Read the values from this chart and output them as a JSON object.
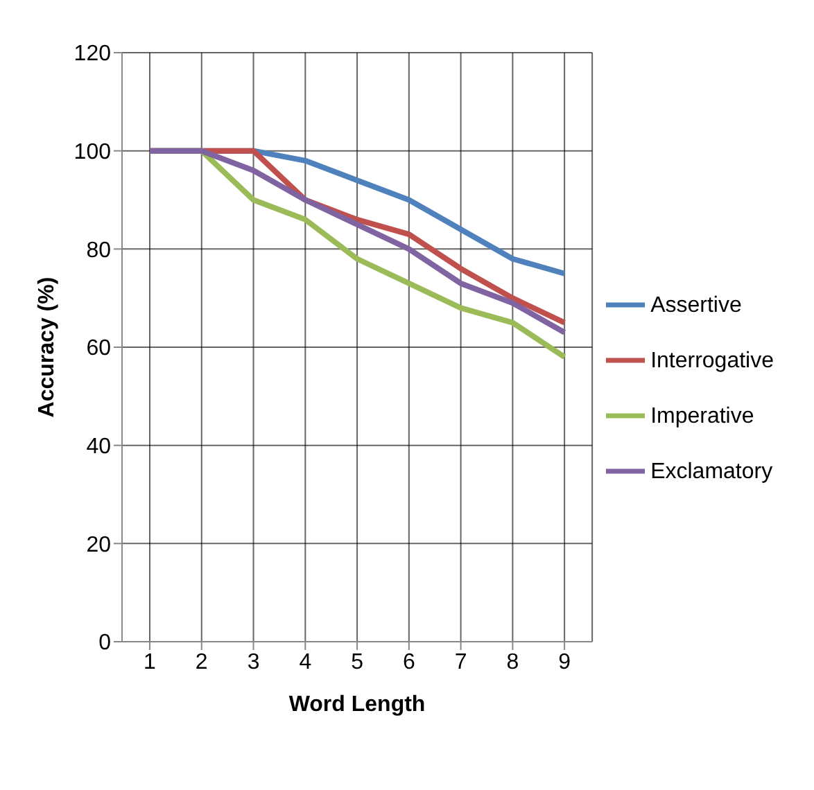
{
  "chart_data": {
    "type": "line",
    "xlabel": "Word Length",
    "ylabel": "Accuracy (%)",
    "categories": [
      "1",
      "2",
      "3",
      "4",
      "5",
      "6",
      "7",
      "8",
      "9"
    ],
    "series": [
      {
        "name": "Assertive",
        "color": "#4f81bd",
        "values": [
          100,
          100,
          100,
          98,
          94,
          90,
          84,
          78,
          75
        ]
      },
      {
        "name": "Interrogative",
        "color": "#c0504d",
        "values": [
          100,
          100,
          100,
          90,
          86,
          83,
          76,
          70,
          65
        ]
      },
      {
        "name": "Imperative",
        "color": "#9bbb59",
        "values": [
          100,
          100,
          90,
          86,
          78,
          73,
          68,
          65,
          58
        ]
      },
      {
        "name": "Exclamatory",
        "color": "#8064a2",
        "values": [
          100,
          100,
          96,
          90,
          85,
          80,
          73,
          69,
          63
        ]
      }
    ],
    "ylim": [
      0,
      120
    ],
    "yticks": [
      0,
      20,
      40,
      60,
      80,
      100,
      120
    ],
    "grid": true,
    "legend": "right",
    "marker": "none",
    "line_style": "solid"
  }
}
